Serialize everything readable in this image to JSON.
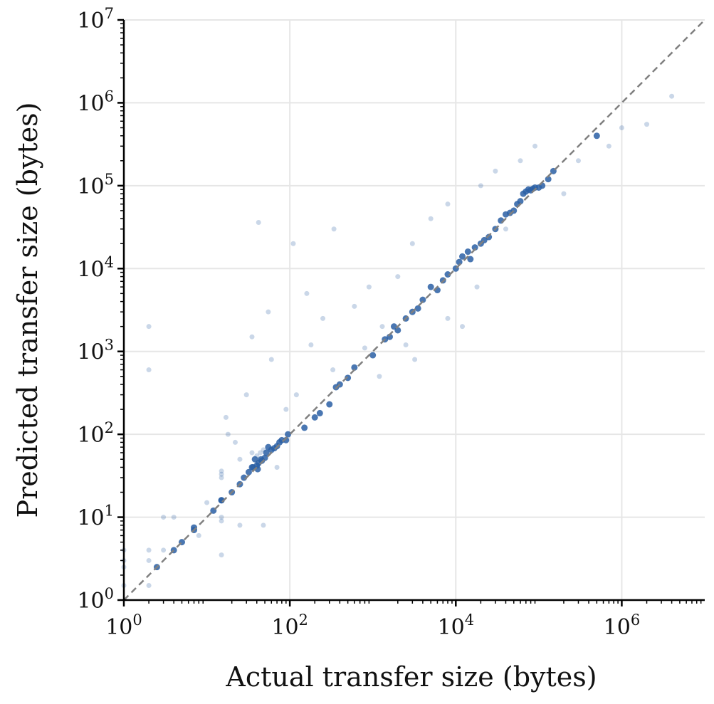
{
  "chart_data": {
    "type": "scatter",
    "title": "",
    "xlabel": "Actual transfer size (bytes)",
    "ylabel": "Predicted transfer size (bytes)",
    "xscale": "log",
    "yscale": "log",
    "xlim": [
      1,
      10000000
    ],
    "ylim": [
      1,
      10000000
    ],
    "grid": true,
    "x_ticks": [
      {
        "value": 1,
        "base": "10",
        "exp": "0"
      },
      {
        "value": 100,
        "base": "10",
        "exp": "2"
      },
      {
        "value": 10000,
        "base": "10",
        "exp": "4"
      },
      {
        "value": 1000000,
        "base": "10",
        "exp": "6"
      }
    ],
    "y_ticks": [
      {
        "value": 1,
        "base": "10",
        "exp": "0"
      },
      {
        "value": 10,
        "base": "10",
        "exp": "1"
      },
      {
        "value": 100,
        "base": "10",
        "exp": "2"
      },
      {
        "value": 1000,
        "base": "10",
        "exp": "3"
      },
      {
        "value": 10000,
        "base": "10",
        "exp": "4"
      },
      {
        "value": 100000,
        "base": "10",
        "exp": "5"
      },
      {
        "value": 1000000,
        "base": "10",
        "exp": "6"
      },
      {
        "value": 10000000,
        "base": "10",
        "exp": "7"
      }
    ],
    "reference_line": {
      "style": "dashed",
      "color": "#808080",
      "from": [
        1,
        1
      ],
      "to": [
        10000000,
        10000000
      ]
    },
    "point_color": "#2a5fa5",
    "points": [
      [
        1,
        1.5
      ],
      [
        1,
        2.5
      ],
      [
        1,
        3
      ],
      [
        1,
        4
      ],
      [
        2,
        1.5
      ],
      [
        2,
        4
      ],
      [
        2,
        3
      ],
      [
        3,
        10
      ],
      [
        3,
        4
      ],
      [
        4,
        10
      ],
      [
        4,
        4
      ],
      [
        7,
        7
      ],
      [
        7,
        7.5
      ],
      [
        15,
        16
      ],
      [
        15,
        16
      ],
      [
        15,
        33
      ],
      [
        15,
        36
      ],
      [
        15,
        9
      ],
      [
        15,
        3.5
      ],
      [
        15,
        10
      ],
      [
        15,
        30
      ],
      [
        17,
        160
      ],
      [
        18,
        100
      ],
      [
        22,
        80
      ],
      [
        25,
        25
      ],
      [
        28,
        30
      ],
      [
        32,
        35
      ],
      [
        35,
        60
      ],
      [
        35,
        40
      ],
      [
        36,
        40
      ],
      [
        38,
        50
      ],
      [
        40,
        55
      ],
      [
        40,
        42
      ],
      [
        41,
        38
      ],
      [
        42,
        36000
      ],
      [
        42,
        45
      ],
      [
        44,
        60
      ],
      [
        45,
        50
      ],
      [
        46,
        48
      ],
      [
        48,
        65
      ],
      [
        48,
        8
      ],
      [
        50,
        52
      ],
      [
        52,
        60
      ],
      [
        55,
        70
      ],
      [
        60,
        65
      ],
      [
        65,
        68
      ],
      [
        70,
        72
      ],
      [
        75,
        80
      ],
      [
        80,
        85
      ],
      [
        90,
        85
      ],
      [
        95,
        100
      ],
      [
        35,
        1500
      ],
      [
        55,
        3000
      ],
      [
        110,
        20000
      ],
      [
        150,
        120
      ],
      [
        200,
        160
      ],
      [
        230,
        180
      ],
      [
        300,
        230
      ],
      [
        330,
        600
      ],
      [
        340,
        30000
      ],
      [
        360,
        370
      ],
      [
        400,
        400
      ],
      [
        500,
        480
      ],
      [
        600,
        640
      ],
      [
        800,
        1100
      ],
      [
        1000,
        900
      ],
      [
        1300,
        2000
      ],
      [
        1400,
        1400
      ],
      [
        1600,
        1500
      ],
      [
        1800,
        2000
      ],
      [
        2000,
        1800
      ],
      [
        2500,
        2500
      ],
      [
        3000,
        3000
      ],
      [
        3500,
        3300
      ],
      [
        4000,
        4200
      ],
      [
        5000,
        6000
      ],
      [
        6000,
        5500
      ],
      [
        7000,
        7200
      ],
      [
        8000,
        8500
      ],
      [
        10000,
        10000
      ],
      [
        11000,
        12000
      ],
      [
        12000,
        14000
      ],
      [
        14000,
        16000
      ],
      [
        15000,
        13000
      ],
      [
        17000,
        18000
      ],
      [
        20000,
        20000
      ],
      [
        22000,
        22000
      ],
      [
        25000,
        24000
      ],
      [
        30000,
        30000
      ],
      [
        35000,
        38000
      ],
      [
        40000,
        45000
      ],
      [
        45000,
        47000
      ],
      [
        50000,
        50000
      ],
      [
        55000,
        60000
      ],
      [
        60000,
        65000
      ],
      [
        65000,
        80000
      ],
      [
        70000,
        85000
      ],
      [
        75000,
        90000
      ],
      [
        80000,
        88000
      ],
      [
        85000,
        92000
      ],
      [
        90000,
        95000
      ],
      [
        100000,
        95000
      ],
      [
        110000,
        100000
      ],
      [
        130000,
        120000
      ],
      [
        150000,
        150000
      ],
      [
        2000,
        8000
      ],
      [
        3000,
        20000
      ],
      [
        5000,
        40000
      ],
      [
        8000,
        60000
      ],
      [
        12000,
        2000
      ],
      [
        20000,
        100000
      ],
      [
        30000,
        150000
      ],
      [
        40000,
        30000
      ],
      [
        60000,
        200000
      ],
      [
        90000,
        300000
      ],
      [
        200000,
        80000
      ],
      [
        300000,
        200000
      ],
      [
        500000,
        400000
      ],
      [
        1000000,
        500000
      ],
      [
        700000,
        300000
      ],
      [
        4000000,
        1200000
      ],
      [
        2000000,
        550000
      ],
      [
        600,
        3500
      ],
      [
        900,
        6000
      ],
      [
        1200,
        500
      ],
      [
        2500,
        1200
      ],
      [
        3200,
        800
      ],
      [
        8000,
        2500
      ],
      [
        18000,
        6000
      ],
      [
        250,
        2500
      ],
      [
        180,
        1200
      ],
      [
        120,
        300
      ],
      [
        90,
        200
      ],
      [
        70,
        40
      ],
      [
        60,
        800
      ],
      [
        160,
        5000
      ],
      [
        30,
        300
      ],
      [
        25,
        50
      ],
      [
        20,
        20
      ],
      [
        12,
        12
      ],
      [
        10,
        15
      ],
      [
        8,
        6
      ],
      [
        5,
        5
      ],
      [
        2.5,
        2.5
      ],
      [
        2,
        2000
      ],
      [
        2,
        600
      ],
      [
        25,
        8
      ]
    ]
  }
}
